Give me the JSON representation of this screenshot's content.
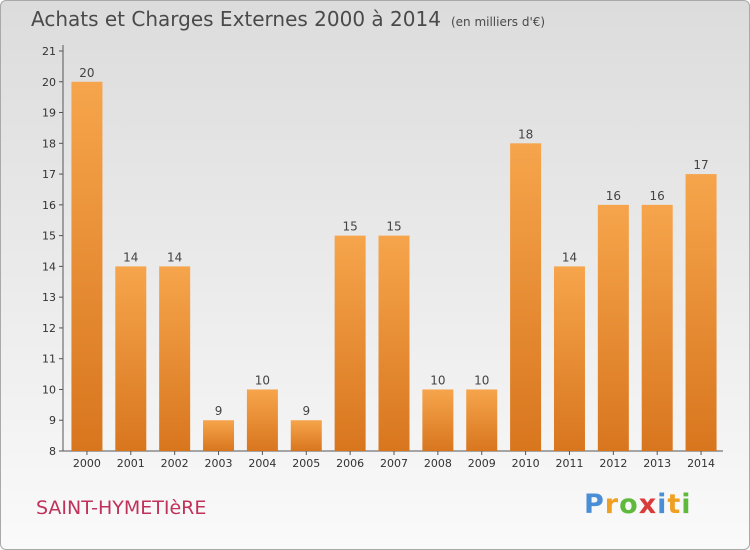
{
  "title": "Achats et Charges Externes 2000 à 2014",
  "unit": "(en milliers d'€)",
  "commune": "SAINT-HYMETIèRE",
  "logo": {
    "letters": [
      "P",
      "r",
      "o",
      "x",
      "i",
      "t",
      "i"
    ],
    "colors": [
      "#4a8fd6",
      "#f0a020",
      "#5fba3c",
      "#d93a3a",
      "#4a8fd6",
      "#f0a020",
      "#5fba3c"
    ]
  },
  "colors": {
    "bar_top": "#f6a54c",
    "bar_bottom": "#d8761e",
    "axis": "#555555"
  },
  "chart_data": {
    "type": "bar",
    "title": "Achats et Charges Externes 2000 à 2014",
    "xlabel": "",
    "ylabel": "",
    "categories": [
      "2000",
      "2001",
      "2002",
      "2003",
      "2004",
      "2005",
      "2006",
      "2007",
      "2008",
      "2009",
      "2010",
      "2011",
      "2012",
      "2013",
      "2014"
    ],
    "values": [
      20,
      14,
      14,
      9,
      10,
      9,
      15,
      15,
      10,
      10,
      18,
      14,
      16,
      16,
      17
    ],
    "ylim": [
      8,
      21
    ],
    "yticks": [
      8,
      9,
      10,
      11,
      12,
      13,
      14,
      15,
      16,
      17,
      18,
      19,
      20,
      21
    ],
    "grid": false,
    "data_labels": true
  }
}
